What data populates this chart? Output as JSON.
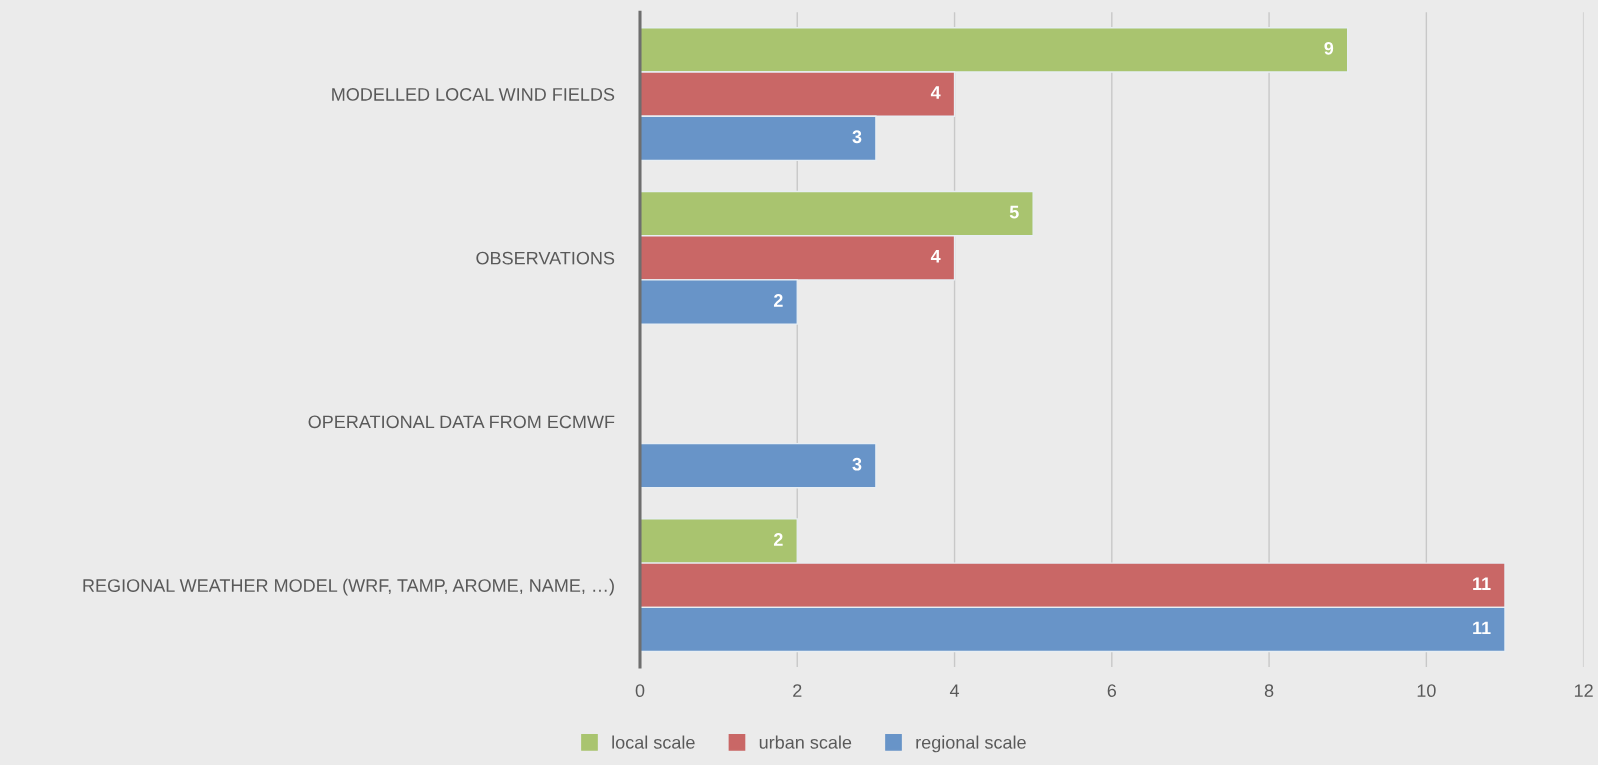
{
  "chart_data": {
    "type": "bar",
    "orientation": "horizontal",
    "categories": [
      "MODELLED LOCAL WIND FIELDS",
      "OBSERVATIONS",
      "OPERATIONAL DATA FROM ECMWF",
      "REGIONAL WEATHER MODEL (WRF, TAMP, AROME, NAME, …)"
    ],
    "series": [
      {
        "name": "local scale",
        "color": "#a9c46f",
        "values": [
          9,
          5,
          null,
          2
        ]
      },
      {
        "name": "urban scale",
        "color": "#c96766",
        "values": [
          4,
          4,
          null,
          11
        ]
      },
      {
        "name": "regional scale",
        "color": "#6894c8",
        "values": [
          3,
          2,
          3,
          11
        ]
      }
    ],
    "xlim": [
      0,
      12
    ],
    "xticks": [
      0,
      2,
      4,
      6,
      8,
      10,
      12
    ],
    "grid": "x",
    "legend": "bottom",
    "data_labels": true
  }
}
